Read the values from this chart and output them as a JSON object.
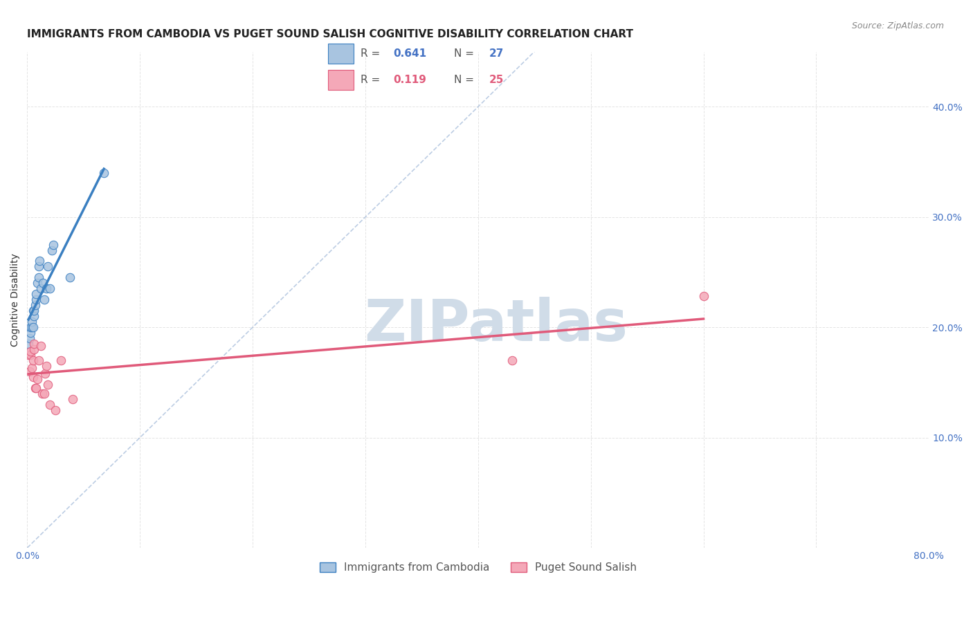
{
  "title": "IMMIGRANTS FROM CAMBODIA VS PUGET SOUND SALISH COGNITIVE DISABILITY CORRELATION CHART",
  "source": "Source: ZipAtlas.com",
  "ylabel": "Cognitive Disability",
  "xlim": [
    0.0,
    0.8
  ],
  "ylim": [
    0.0,
    0.45
  ],
  "xtick_positions": [
    0.0,
    0.1,
    0.2,
    0.3,
    0.4,
    0.5,
    0.6,
    0.7,
    0.8
  ],
  "xticklabels": [
    "0.0%",
    "",
    "",
    "",
    "",
    "",
    "",
    "",
    "80.0%"
  ],
  "ytick_positions": [
    0.1,
    0.2,
    0.3,
    0.4
  ],
  "ytick_labels_right": [
    "10.0%",
    "20.0%",
    "30.0%",
    "40.0%"
  ],
  "grid_color": "#dddddd",
  "background_color": "#ffffff",
  "series1_name": "Immigrants from Cambodia",
  "series1_color": "#a8c4e0",
  "series1_line_color": "#3a7fc1",
  "series1_R": "0.641",
  "series1_N": "27",
  "series2_name": "Puget Sound Salish",
  "series2_color": "#f4a8b8",
  "series2_line_color": "#e05a7a",
  "series2_R": "0.119",
  "series2_N": "25",
  "series1_x": [
    0.001,
    0.002,
    0.003,
    0.003,
    0.004,
    0.004,
    0.005,
    0.005,
    0.006,
    0.006,
    0.007,
    0.008,
    0.008,
    0.009,
    0.01,
    0.01,
    0.011,
    0.012,
    0.014,
    0.015,
    0.017,
    0.018,
    0.02,
    0.022,
    0.023,
    0.038,
    0.068
  ],
  "series1_y": [
    0.185,
    0.19,
    0.195,
    0.2,
    0.2,
    0.205,
    0.2,
    0.215,
    0.21,
    0.215,
    0.22,
    0.225,
    0.23,
    0.24,
    0.245,
    0.255,
    0.26,
    0.235,
    0.24,
    0.225,
    0.235,
    0.255,
    0.235,
    0.27,
    0.275,
    0.245,
    0.34
  ],
  "series2_x": [
    0.001,
    0.002,
    0.003,
    0.003,
    0.004,
    0.005,
    0.005,
    0.006,
    0.006,
    0.007,
    0.008,
    0.009,
    0.01,
    0.012,
    0.013,
    0.015,
    0.016,
    0.017,
    0.018,
    0.02,
    0.025,
    0.03,
    0.04,
    0.43,
    0.6
  ],
  "series2_y": [
    0.175,
    0.16,
    0.175,
    0.178,
    0.163,
    0.17,
    0.155,
    0.18,
    0.185,
    0.145,
    0.145,
    0.153,
    0.17,
    0.183,
    0.14,
    0.14,
    0.158,
    0.165,
    0.148,
    0.13,
    0.125,
    0.17,
    0.135,
    0.17,
    0.228
  ],
  "title_fontsize": 11,
  "axis_label_fontsize": 10,
  "tick_fontsize": 10,
  "watermark_text": "ZIPatlas",
  "watermark_color": "#d0dce8",
  "watermark_fontsize": 60,
  "blue_text_color": "#4472c4",
  "pink_text_color": "#e05a7a"
}
